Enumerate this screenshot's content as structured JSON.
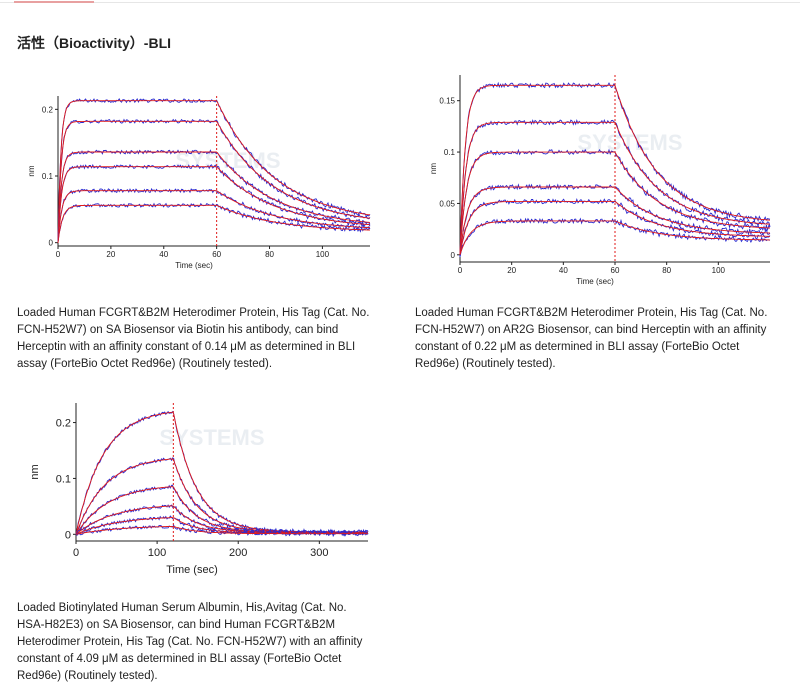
{
  "section": {
    "title": "活性（Bioactivity）-BLI"
  },
  "chart_data": [
    {
      "type": "line",
      "id": "chart1",
      "xlabel": "Time (sec)",
      "ylabel": "nm",
      "xlim": [
        0,
        118
      ],
      "ylim": [
        -0.005,
        0.22
      ],
      "xticks": [
        0,
        20,
        40,
        60,
        80,
        100
      ],
      "yticks": [
        0,
        0.1,
        0.2
      ],
      "yticklabels": [
        "0",
        "0.1",
        "0.2"
      ],
      "association_end": 60,
      "grid": false,
      "watermark": "SYSTEMS",
      "series": [
        {
          "plateau": 0.213,
          "k_on": 0.9,
          "k_off": 0.045,
          "floor": 0.028
        },
        {
          "plateau": 0.182,
          "k_on": 0.85,
          "k_off": 0.045,
          "floor": 0.025
        },
        {
          "plateau": 0.136,
          "k_on": 0.8,
          "k_off": 0.045,
          "floor": 0.022
        },
        {
          "plateau": 0.114,
          "k_on": 0.75,
          "k_off": 0.045,
          "floor": 0.02
        },
        {
          "plateau": 0.078,
          "k_on": 0.7,
          "k_off": 0.045,
          "floor": 0.018
        },
        {
          "plateau": 0.056,
          "k_on": 0.6,
          "k_off": 0.045,
          "floor": 0.016
        }
      ],
      "caption": "Loaded Human FCGRT&B2M Heterodimer Protein, His Tag (Cat. No. FCN-H52W7) on SA Biosensor via Biotin his antibody, can bind Herceptin with an affinity constant of 0.14 μM as determined in BLI assay (ForteBio Octet Red96e) (Routinely tested)."
    },
    {
      "type": "line",
      "id": "chart2",
      "xlabel": "Time (sec)",
      "ylabel": "nm",
      "xlim": [
        0,
        120
      ],
      "ylim": [
        -0.007,
        0.175
      ],
      "xticks": [
        0,
        20,
        40,
        60,
        80,
        100
      ],
      "yticks": [
        0,
        0.05,
        0.1,
        0.15
      ],
      "yticklabels": [
        "0",
        "0.05",
        "0.1",
        "0.15"
      ],
      "association_end": 60,
      "grid": false,
      "watermark": "SYSTEMS",
      "series": [
        {
          "plateau": 0.165,
          "k_on": 0.5,
          "k_off": 0.06,
          "floor": 0.03
        },
        {
          "plateau": 0.129,
          "k_on": 0.45,
          "k_off": 0.06,
          "floor": 0.027
        },
        {
          "plateau": 0.1,
          "k_on": 0.4,
          "k_off": 0.06,
          "floor": 0.024
        },
        {
          "plateau": 0.066,
          "k_on": 0.35,
          "k_off": 0.06,
          "floor": 0.02
        },
        {
          "plateau": 0.052,
          "k_on": 0.3,
          "k_off": 0.06,
          "floor": 0.017
        },
        {
          "plateau": 0.033,
          "k_on": 0.25,
          "k_off": 0.06,
          "floor": 0.014
        }
      ],
      "caption": "Loaded Human FCGRT&B2M Heterodimer Protein, His Tag (Cat. No. FCN-H52W7) on AR2G Biosensor, can bind Herceptin with an affinity constant of 0.22 μM as determined in BLI assay (ForteBio Octet Red96e) (Routinely tested)."
    },
    {
      "type": "line",
      "id": "chart3",
      "xlabel": "Time (sec)",
      "ylabel": "nm",
      "xlim": [
        0,
        360
      ],
      "ylim": [
        -0.012,
        0.235
      ],
      "xticks": [
        0,
        100,
        200,
        300
      ],
      "yticks": [
        0,
        0.1,
        0.2
      ],
      "yticklabels": [
        "0",
        "0.1",
        "0.2"
      ],
      "association_end": 120,
      "grid": false,
      "watermark": "SYSTEMS",
      "series": [
        {
          "plateau": 0.225,
          "k_on": 0.03,
          "k_off": 0.035,
          "floor": 0.004
        },
        {
          "plateau": 0.14,
          "k_on": 0.028,
          "k_off": 0.035,
          "floor": 0.004
        },
        {
          "plateau": 0.09,
          "k_on": 0.025,
          "k_off": 0.035,
          "floor": 0.003
        },
        {
          "plateau": 0.055,
          "k_on": 0.022,
          "k_off": 0.035,
          "floor": 0.003
        },
        {
          "plateau": 0.033,
          "k_on": 0.02,
          "k_off": 0.035,
          "floor": 0.002
        },
        {
          "plateau": 0.016,
          "k_on": 0.018,
          "k_off": 0.035,
          "floor": 0.001
        }
      ],
      "caption": "Loaded Biotinylated Human Serum Albumin, His,Avitag (Cat. No. HSA-H82E3) on SA Biosensor, can bind Human FCGRT&B2M Heterodimer Protein, His Tag (Cat. No. FCN-H52W7) with an affinity constant of 4.09 μM as determined in BLI assay (ForteBio Octet Red96e) (Routinely tested)."
    }
  ],
  "colors": {
    "data": "#2b2bd0",
    "fit": "#e01a1a",
    "axis": "#222222",
    "dash": "#e01a1a"
  }
}
